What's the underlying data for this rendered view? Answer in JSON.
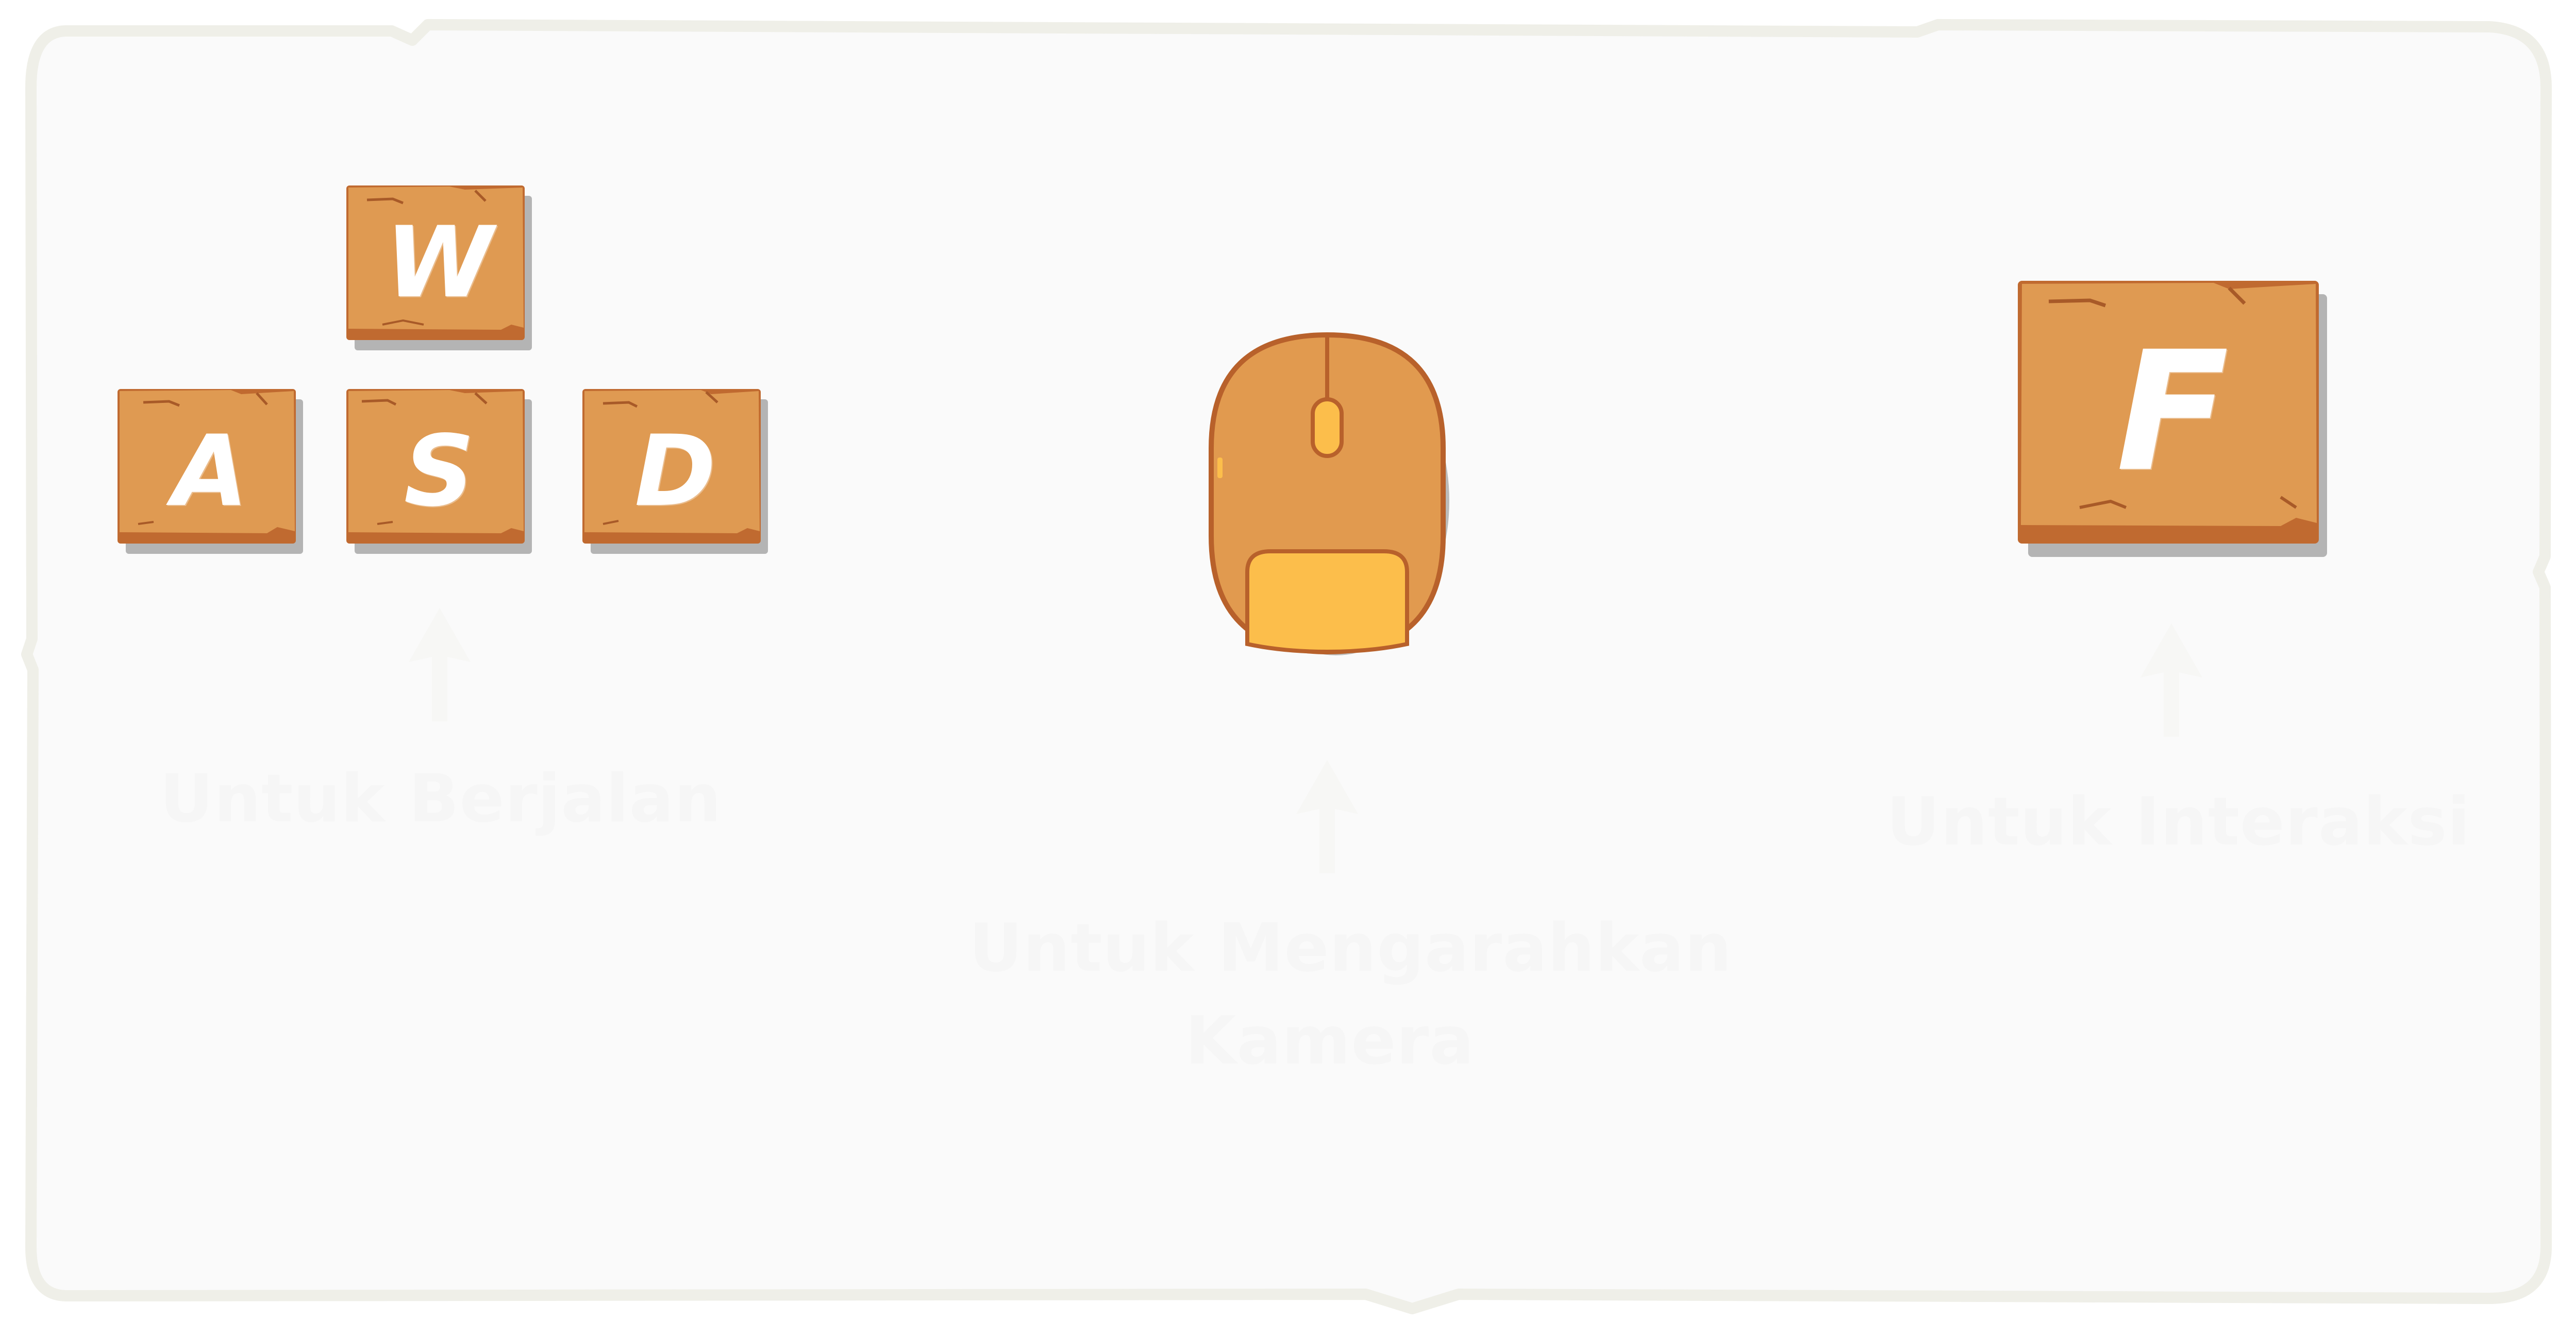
{
  "colors": {
    "panel_bg": "#fafafa",
    "panel_border": "#efefea",
    "key_face": "#df9a52",
    "key_edge": "#c06a30",
    "key_crack": "#a85a28",
    "mouse_body": "#e19a4f",
    "mouse_outline": "#b8612b",
    "mouse_pad": "#fcbe4b",
    "caption_text": "#f6f6f6"
  },
  "keys": {
    "w": "W",
    "a": "A",
    "s": "S",
    "d": "D",
    "f": "F"
  },
  "icons": {
    "mouse": "mouse-icon",
    "arrow": "arrow-up-icon"
  },
  "captions": {
    "walk": "Untuk Berjalan",
    "camera_line1": "Untuk Mengarahkan",
    "camera_line2": "Kamera",
    "interact": "Untuk Interaksi"
  }
}
